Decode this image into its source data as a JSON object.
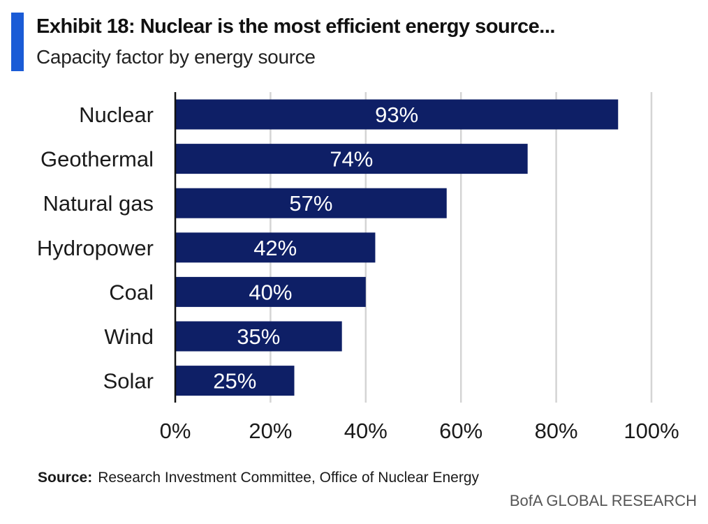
{
  "header": {
    "title": "Exhibit 18: Nuclear is the most efficient energy source...",
    "subtitle": "Capacity factor by energy source"
  },
  "chart_data": {
    "type": "bar",
    "orientation": "horizontal",
    "categories": [
      "Nuclear",
      "Geothermal",
      "Natural gas",
      "Hydropower",
      "Coal",
      "Wind",
      "Solar"
    ],
    "values": [
      93,
      74,
      57,
      42,
      40,
      35,
      25
    ],
    "data_labels": [
      "93%",
      "74%",
      "57%",
      "42%",
      "40%",
      "35%",
      "25%"
    ],
    "x_ticks": [
      "0%",
      "20%",
      "40%",
      "60%",
      "80%",
      "100%"
    ],
    "xlim": [
      0,
      100
    ],
    "grid": "vertical",
    "bar_color": "#0e1f66",
    "title": "Exhibit 18: Nuclear is the most efficient energy source...",
    "subtitle": "Capacity factor by energy source"
  },
  "source": {
    "label": "Source:",
    "text": "Research Investment Committee, Office of Nuclear Energy"
  },
  "footer": {
    "brand": "BofA GLOBAL RESEARCH"
  },
  "colors": {
    "accent": "#1a5bd6",
    "bar": "#0e1f66",
    "grid": "#d4d4d4"
  }
}
